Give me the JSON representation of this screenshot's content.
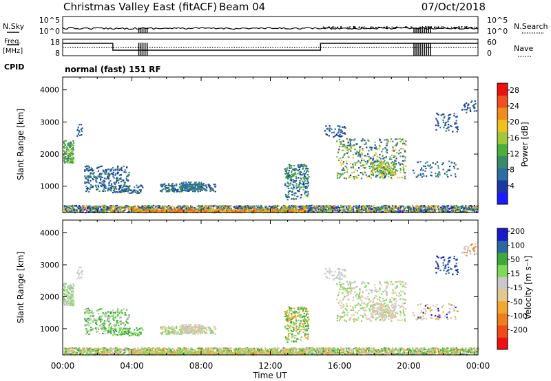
{
  "header": {
    "title": "Christmas Valley East (fitACF)",
    "beam": "Beam 04",
    "date": "07/Oct/2018"
  },
  "top_panels": {
    "nsky_label": "N.Sky",
    "nsky_ticks": [
      "10^5",
      "10^0"
    ],
    "nsearch_label": "N.Search",
    "nsearch_ticks": [
      "10^5",
      "10^0"
    ],
    "freq_label_line1": "Freq.",
    "freq_label_line2": "[MHz]",
    "freq_ticks": [
      "18",
      "8"
    ],
    "nave_label": "Nave",
    "nave_ticks": [
      "60",
      "0"
    ],
    "cpid_label": "CPID",
    "cpid_text": "normal (fast) 151 RF"
  },
  "colors": {
    "power": [
      "#1a1aff",
      "#1a3aa0",
      "#2b6ea0",
      "#3a8a6a",
      "#4cae3c",
      "#a0c83a",
      "#f0c020",
      "#f08c1e",
      "#f05020",
      "#ee1010"
    ],
    "velocity": [
      "#ee1010",
      "#f04a1a",
      "#f07e1e",
      "#f0a830",
      "#e0c890",
      "#c8c8c8",
      "#7ed85a",
      "#3ea83a",
      "#2a6aa0",
      "#1a1acc"
    ]
  },
  "chart_data": [
    {
      "type": "heatmap",
      "name": "power-panel",
      "ylabel": "Slant Range [km]",
      "yticks": [
        1000,
        2000,
        3000,
        4000
      ],
      "ylim": [
        180,
        4400
      ],
      "xlim": [
        0,
        24
      ],
      "colorbar_label": "Power [dB]",
      "colorbar_ticks": [
        "4",
        "8",
        "12",
        "16",
        "20",
        "24",
        "28"
      ],
      "colorbar_range": [
        0,
        30
      ]
    },
    {
      "type": "heatmap",
      "name": "velocity-panel",
      "ylabel": "Slant Range [km]",
      "yticks": [
        1000,
        2000,
        3000,
        4000
      ],
      "ylim": [
        180,
        4400
      ],
      "xlim": [
        0,
        24
      ],
      "xticks": [
        0,
        4,
        8,
        12,
        16,
        20,
        24
      ],
      "xtick_labels": [
        "00:00",
        "04:00",
        "08:00",
        "12:00",
        "16:00",
        "20:00",
        "00:00"
      ],
      "xlabel": "Time UT",
      "colorbar_label": "Velocity [m s⁻¹]",
      "colorbar_ticks": [
        "-200",
        "-100",
        "-50",
        "-15",
        "15",
        "50",
        "100",
        "200"
      ]
    }
  ]
}
